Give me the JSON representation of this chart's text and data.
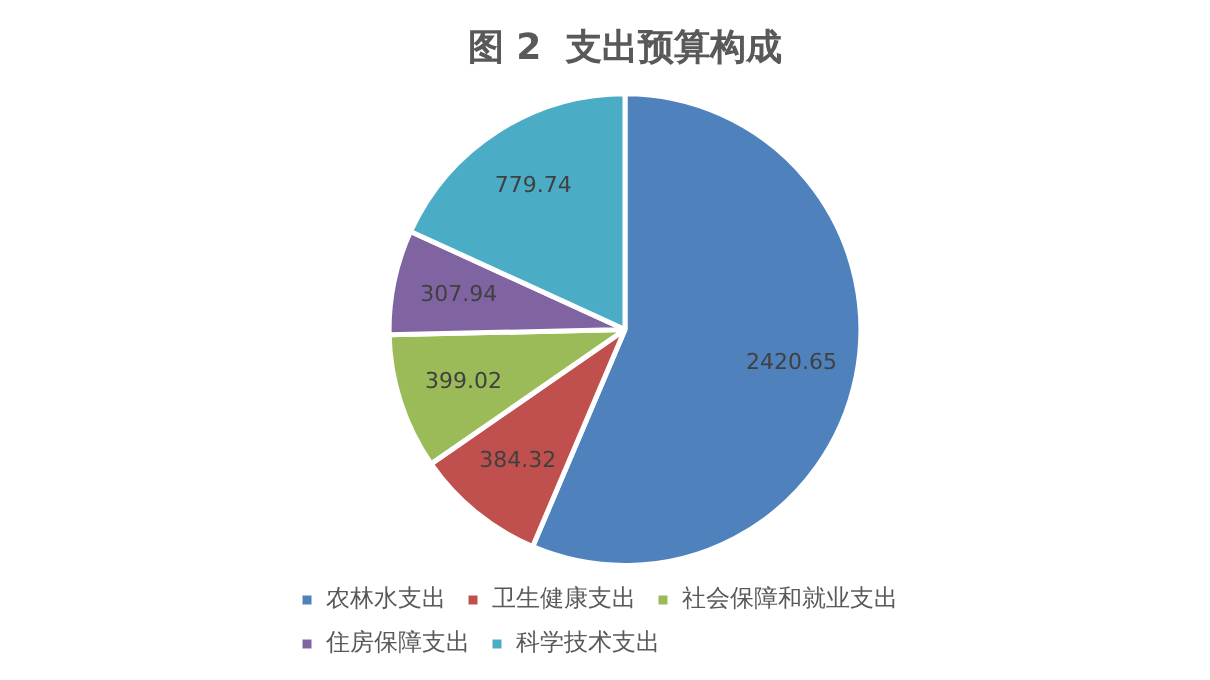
{
  "chart_data": {
    "type": "pie",
    "title": "图 2  支出预算构成",
    "categories": [
      "农林水支出",
      "卫生健康支出",
      "社会保障和就业支出",
      "住房保障支出",
      "科学技术支出"
    ],
    "values": [
      2420.65,
      384.32,
      399.02,
      307.94,
      779.74
    ],
    "colors": [
      "#4f81bd",
      "#c0504d",
      "#9bbb59",
      "#8064a2",
      "#4bacc6"
    ],
    "data_labels": true,
    "legend": "bottom"
  }
}
